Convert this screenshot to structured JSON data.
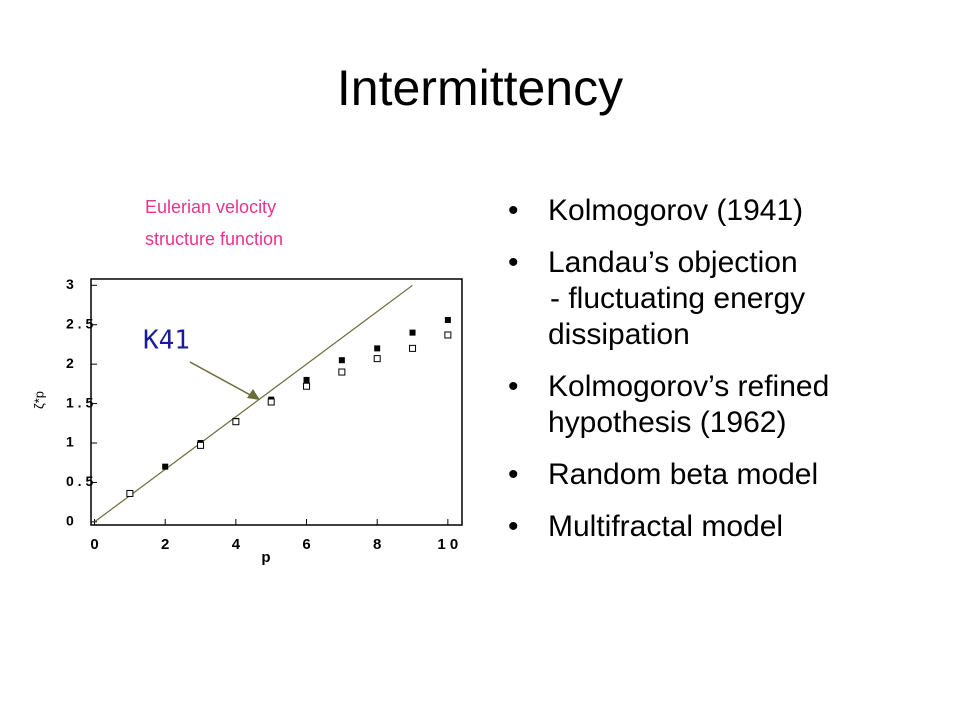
{
  "title": "Intermittency",
  "caption": [
    "Eulerian velocity",
    "structure function"
  ],
  "bullets": [
    [
      "Kolmogorov (1941)"
    ],
    [
      "Landau’s objection",
      "- fluctuating energy",
      "dissipation"
    ],
    [
      "Kolmogorov’s refined",
      "hypothesis (1962)"
    ],
    [
      "Random beta model"
    ],
    [
      "Multifractal model"
    ]
  ],
  "chart_data": {
    "type": "scatter",
    "annotation": "K41",
    "xlabel": "p",
    "ylabel": "ζ*p",
    "xlim": [
      -0.1,
      10.4
    ],
    "ylim": [
      -0.04,
      3.08
    ],
    "xticks": [
      0,
      2,
      4,
      6,
      8,
      {
        "value": 10,
        "label": "1 0"
      }
    ],
    "yticks": [
      0,
      {
        "value": 0.5,
        "label": "0 . 5"
      },
      1,
      {
        "value": 1.5,
        "label": "1 . 5"
      },
      2,
      {
        "value": 2.5,
        "label": "2 . 5"
      },
      3
    ],
    "line": {
      "x": [
        0,
        9
      ],
      "values": [
        0,
        3
      ],
      "color": "#6b6b3a"
    },
    "series": [
      {
        "marker": "filled",
        "color": "#000000",
        "x": [
          2,
          3,
          4,
          5,
          6,
          7,
          8,
          9,
          10
        ],
        "values": [
          0.7,
          1.0,
          1.28,
          1.55,
          1.8,
          2.05,
          2.2,
          2.4,
          2.56
        ]
      },
      {
        "marker": "open",
        "color": "#000000",
        "x": [
          1,
          3,
          4,
          5,
          6,
          7,
          8,
          9,
          10
        ],
        "values": [
          0.36,
          0.97,
          1.27,
          1.52,
          1.72,
          1.9,
          2.07,
          2.2,
          2.37
        ]
      }
    ]
  }
}
